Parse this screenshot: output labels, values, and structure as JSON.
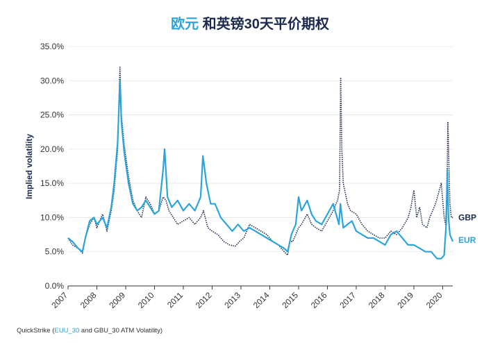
{
  "title": {
    "accent": "欧元",
    "rest": " 和英镑30天平价期权"
  },
  "source": {
    "prefix": "QuickStrike (",
    "link": "EUU_30",
    "suffix": " and GBU_30 ATM Volatility)"
  },
  "colors": {
    "EUR": "#2aa4dc",
    "GBP": "#1b2a4e",
    "grid": "#e3e6ea",
    "axis": "#333333"
  },
  "chart_data": {
    "type": "line",
    "ylabel": "Implied volatility",
    "xlabel": "",
    "ylim": [
      0,
      35
    ],
    "y_ticks": [
      0,
      5,
      10,
      15,
      20,
      25,
      30,
      35
    ],
    "y_tick_labels": [
      "0.0%",
      "5.0%",
      "10.0%",
      "15.0%",
      "20.0%",
      "25.0%",
      "30.0%",
      "35.0%"
    ],
    "xlim": [
      2007.0,
      2020.35
    ],
    "x_ticks": [
      2007,
      2008,
      2009,
      2010,
      2011,
      2012,
      2013,
      2014,
      2015,
      2016,
      2017,
      2018,
      2019,
      2020
    ],
    "x_tick_labels": [
      "2007",
      "2008",
      "2009",
      "2010",
      "2011",
      "2012",
      "2013",
      "2014",
      "2015",
      "2016",
      "2017",
      "2018",
      "2019",
      "2020"
    ],
    "grid": "horizontal",
    "series": [
      {
        "name": "GBP",
        "style": "dotted",
        "x": [
          2007.0,
          2007.15,
          2007.35,
          2007.5,
          2007.6,
          2007.75,
          2007.9,
          2008.0,
          2008.2,
          2008.35,
          2008.5,
          2008.6,
          2008.72,
          2008.8,
          2008.85,
          2008.95,
          2009.1,
          2009.25,
          2009.4,
          2009.55,
          2009.7,
          2009.85,
          2010.0,
          2010.15,
          2010.3,
          2010.4,
          2010.5,
          2010.65,
          2010.8,
          2011.0,
          2011.2,
          2011.4,
          2011.6,
          2011.7,
          2011.85,
          2012.0,
          2012.2,
          2012.4,
          2012.6,
          2012.8,
          2012.95,
          2013.1,
          2013.3,
          2013.5,
          2013.7,
          2013.9,
          2014.1,
          2014.3,
          2014.5,
          2014.62,
          2014.7,
          2014.8,
          2015.0,
          2015.1,
          2015.3,
          2015.45,
          2015.6,
          2015.8,
          2016.0,
          2016.2,
          2016.35,
          2016.42,
          2016.46,
          2016.5,
          2016.55,
          2016.7,
          2016.8,
          2017.0,
          2017.2,
          2017.4,
          2017.6,
          2017.8,
          2018.0,
          2018.2,
          2018.4,
          2018.6,
          2018.8,
          2018.9,
          2019.0,
          2019.1,
          2019.2,
          2019.3,
          2019.45,
          2019.55,
          2019.65,
          2019.75,
          2019.85,
          2019.95,
          2020.05,
          2020.1,
          2020.15,
          2020.18,
          2020.22,
          2020.25,
          2020.3,
          2020.35
        ],
        "y": [
          7.0,
          6.0,
          5.5,
          4.8,
          7.0,
          9.0,
          10.0,
          8.5,
          10.5,
          8.0,
          11.0,
          14.0,
          20.0,
          32.0,
          25.0,
          20.5,
          16.0,
          12.5,
          11.0,
          10.0,
          13.0,
          12.0,
          10.5,
          11.0,
          13.0,
          12.5,
          11.0,
          10.0,
          9.0,
          9.5,
          10.0,
          9.0,
          10.0,
          11.0,
          8.5,
          8.0,
          7.5,
          6.5,
          6.0,
          5.8,
          6.5,
          7.0,
          9.0,
          8.5,
          8.0,
          7.5,
          6.5,
          6.0,
          5.0,
          4.5,
          6.5,
          6.5,
          8.5,
          9.0,
          10.5,
          9.0,
          8.5,
          8.0,
          9.5,
          11.0,
          12.5,
          14.0,
          30.5,
          20.0,
          15.0,
          12.0,
          11.0,
          10.5,
          9.0,
          8.0,
          7.5,
          7.0,
          7.0,
          8.0,
          7.5,
          8.5,
          10.0,
          11.5,
          14.0,
          10.0,
          11.5,
          9.0,
          8.5,
          10.0,
          11.0,
          12.0,
          13.5,
          15.0,
          10.0,
          9.0,
          14.0,
          24.0,
          17.0,
          12.0,
          10.0,
          10.0
        ]
      },
      {
        "name": "EUR",
        "style": "solid",
        "x": [
          2007.0,
          2007.15,
          2007.35,
          2007.5,
          2007.6,
          2007.75,
          2007.9,
          2008.0,
          2008.2,
          2008.35,
          2008.5,
          2008.6,
          2008.72,
          2008.8,
          2008.85,
          2008.95,
          2009.1,
          2009.25,
          2009.4,
          2009.55,
          2009.7,
          2009.85,
          2010.0,
          2010.15,
          2010.3,
          2010.35,
          2010.45,
          2010.6,
          2010.8,
          2011.0,
          2011.2,
          2011.4,
          2011.6,
          2011.68,
          2011.8,
          2011.95,
          2012.1,
          2012.3,
          2012.5,
          2012.7,
          2012.9,
          2013.1,
          2013.3,
          2013.5,
          2013.7,
          2013.9,
          2014.1,
          2014.3,
          2014.5,
          2014.62,
          2014.75,
          2014.9,
          2015.0,
          2015.1,
          2015.3,
          2015.45,
          2015.6,
          2015.8,
          2016.0,
          2016.2,
          2016.4,
          2016.45,
          2016.55,
          2016.7,
          2016.85,
          2017.0,
          2017.2,
          2017.4,
          2017.6,
          2017.8,
          2018.0,
          2018.2,
          2018.4,
          2018.6,
          2018.8,
          2019.0,
          2019.2,
          2019.4,
          2019.6,
          2019.8,
          2019.95,
          2020.05,
          2020.12,
          2020.16,
          2020.2,
          2020.25,
          2020.3,
          2020.35
        ],
        "y": [
          7.0,
          6.5,
          5.5,
          5.0,
          7.0,
          9.5,
          10.0,
          9.0,
          10.0,
          8.5,
          11.5,
          15.0,
          21.0,
          30.0,
          24.0,
          19.5,
          15.0,
          12.0,
          11.0,
          11.5,
          12.5,
          11.5,
          10.5,
          11.0,
          17.0,
          20.0,
          13.0,
          11.5,
          12.5,
          11.0,
          12.0,
          11.0,
          13.0,
          19.0,
          15.0,
          12.0,
          12.0,
          10.0,
          9.0,
          8.0,
          9.0,
          8.0,
          8.5,
          8.0,
          7.5,
          7.0,
          6.5,
          6.0,
          5.5,
          5.0,
          7.5,
          9.0,
          13.0,
          11.0,
          12.5,
          10.5,
          9.5,
          9.0,
          10.5,
          12.0,
          9.0,
          12.0,
          8.5,
          9.0,
          9.5,
          8.0,
          7.5,
          7.0,
          7.0,
          6.5,
          6.0,
          7.5,
          8.0,
          7.0,
          6.0,
          6.0,
          5.5,
          5.0,
          5.0,
          4.0,
          4.0,
          4.5,
          9.0,
          17.0,
          10.0,
          7.5,
          7.0,
          6.5
        ]
      }
    ]
  }
}
